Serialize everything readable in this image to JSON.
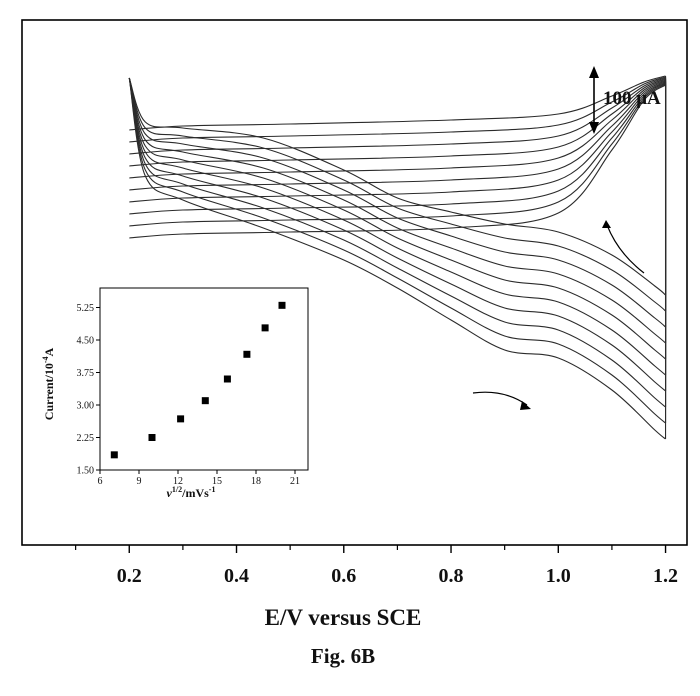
{
  "chart_data": [
    {
      "type": "line",
      "xlabel": "E/V versus SCE",
      "caption": "Fig. 6B",
      "xlim": [
        0.0,
        1.24
      ],
      "xticks": [
        0.2,
        0.4,
        0.6,
        0.8,
        1.0,
        1.2
      ],
      "xtick_labels": [
        "0.2",
        "0.4",
        "0.6",
        "0.8",
        "1.0",
        "1.2"
      ],
      "scale_bar": {
        "label": "100 μA",
        "value_uA": 100
      },
      "series_count": 10,
      "series": [
        {
          "anodic": [
            [
              0.2,
              110
            ],
            [
              0.3,
              106
            ],
            [
              0.5,
              104
            ],
            [
              0.8,
              100
            ],
            [
              1.0,
              94
            ],
            [
              1.1,
              76
            ],
            [
              1.16,
              62
            ],
            [
              1.2,
              56
            ]
          ],
          "cathodic": [
            [
              0.2,
              58
            ],
            [
              0.23,
              102
            ],
            [
              0.3,
              108
            ],
            [
              0.45,
              118
            ],
            [
              0.6,
              150
            ],
            [
              0.7,
              178
            ],
            [
              0.8,
              192
            ],
            [
              0.9,
              204
            ],
            [
              1.0,
              212
            ],
            [
              1.1,
              235
            ],
            [
              1.18,
              266
            ],
            [
              1.2,
              275
            ]
          ]
        },
        {
          "anodic": [
            [
              0.2,
              122
            ],
            [
              0.3,
              118
            ],
            [
              0.5,
              116
            ],
            [
              0.8,
              112
            ],
            [
              1.0,
              105
            ],
            [
              1.1,
              82
            ],
            [
              1.16,
              64
            ],
            [
              1.2,
              57
            ]
          ],
          "cathodic": [
            [
              0.2,
              58
            ],
            [
              0.23,
              108
            ],
            [
              0.3,
              116
            ],
            [
              0.45,
              128
            ],
            [
              0.6,
              160
            ],
            [
              0.7,
              188
            ],
            [
              0.8,
              204
            ],
            [
              0.9,
              218
            ],
            [
              1.0,
              226
            ],
            [
              1.1,
              250
            ],
            [
              1.18,
              282
            ],
            [
              1.2,
              291
            ]
          ]
        },
        {
          "anodic": [
            [
              0.2,
              134
            ],
            [
              0.3,
              130
            ],
            [
              0.5,
              128
            ],
            [
              0.8,
              124
            ],
            [
              1.0,
              116
            ],
            [
              1.1,
              88
            ],
            [
              1.16,
              66
            ],
            [
              1.2,
              58
            ]
          ],
          "cathodic": [
            [
              0.2,
              58
            ],
            [
              0.23,
              114
            ],
            [
              0.3,
              124
            ],
            [
              0.45,
              138
            ],
            [
              0.6,
              170
            ],
            [
              0.7,
              198
            ],
            [
              0.8,
              216
            ],
            [
              0.9,
              232
            ],
            [
              1.0,
              240
            ],
            [
              1.1,
              265
            ],
            [
              1.18,
              298
            ],
            [
              1.2,
              307
            ]
          ]
        },
        {
          "anodic": [
            [
              0.2,
              146
            ],
            [
              0.3,
              142
            ],
            [
              0.5,
              140
            ],
            [
              0.8,
              136
            ],
            [
              1.0,
              127
            ],
            [
              1.1,
              94
            ],
            [
              1.16,
              68
            ],
            [
              1.2,
              59
            ]
          ],
          "cathodic": [
            [
              0.2,
              58
            ],
            [
              0.23,
              120
            ],
            [
              0.3,
              132
            ],
            [
              0.45,
              148
            ],
            [
              0.6,
              180
            ],
            [
              0.7,
              208
            ],
            [
              0.8,
              228
            ],
            [
              0.9,
              246
            ],
            [
              1.0,
              254
            ],
            [
              1.1,
              280
            ],
            [
              1.18,
              314
            ],
            [
              1.2,
              323
            ]
          ]
        },
        {
          "anodic": [
            [
              0.2,
              158
            ],
            [
              0.3,
              154
            ],
            [
              0.5,
              152
            ],
            [
              0.8,
              148
            ],
            [
              1.0,
              138
            ],
            [
              1.1,
              100
            ],
            [
              1.16,
              70
            ],
            [
              1.2,
              60
            ]
          ],
          "cathodic": [
            [
              0.2,
              58
            ],
            [
              0.23,
              126
            ],
            [
              0.3,
              140
            ],
            [
              0.45,
              158
            ],
            [
              0.6,
              190
            ],
            [
              0.7,
              218
            ],
            [
              0.8,
              240
            ],
            [
              0.9,
              260
            ],
            [
              1.0,
              268
            ],
            [
              1.1,
              295
            ],
            [
              1.18,
              330
            ],
            [
              1.2,
              339
            ]
          ]
        },
        {
          "anodic": [
            [
              0.2,
              170
            ],
            [
              0.3,
              166
            ],
            [
              0.5,
              164
            ],
            [
              0.8,
              160
            ],
            [
              1.0,
              149
            ],
            [
              1.1,
              106
            ],
            [
              1.16,
              72
            ],
            [
              1.2,
              61
            ]
          ],
          "cathodic": [
            [
              0.2,
              58
            ],
            [
              0.23,
              132
            ],
            [
              0.3,
              148
            ],
            [
              0.45,
              168
            ],
            [
              0.6,
              200
            ],
            [
              0.7,
              228
            ],
            [
              0.8,
              252
            ],
            [
              0.9,
              274
            ],
            [
              1.0,
              282
            ],
            [
              1.1,
              310
            ],
            [
              1.18,
              346
            ],
            [
              1.2,
              355
            ]
          ]
        },
        {
          "anodic": [
            [
              0.2,
              182
            ],
            [
              0.3,
              178
            ],
            [
              0.5,
              176
            ],
            [
              0.8,
              172
            ],
            [
              1.0,
              160
            ],
            [
              1.1,
              112
            ],
            [
              1.16,
              74
            ],
            [
              1.2,
              62
            ]
          ],
          "cathodic": [
            [
              0.2,
              58
            ],
            [
              0.23,
              138
            ],
            [
              0.3,
              156
            ],
            [
              0.45,
              178
            ],
            [
              0.6,
              210
            ],
            [
              0.7,
              238
            ],
            [
              0.8,
              264
            ],
            [
              0.9,
              288
            ],
            [
              1.0,
              296
            ],
            [
              1.1,
              325
            ],
            [
              1.18,
              362
            ],
            [
              1.2,
              371
            ]
          ]
        },
        {
          "anodic": [
            [
              0.2,
              194
            ],
            [
              0.3,
              190
            ],
            [
              0.5,
              188
            ],
            [
              0.8,
              184
            ],
            [
              1.0,
              171
            ],
            [
              1.1,
              118
            ],
            [
              1.16,
              76
            ],
            [
              1.2,
              63
            ]
          ],
          "cathodic": [
            [
              0.2,
              58
            ],
            [
              0.23,
              144
            ],
            [
              0.3,
              164
            ],
            [
              0.45,
              188
            ],
            [
              0.6,
              220
            ],
            [
              0.7,
              248
            ],
            [
              0.8,
              276
            ],
            [
              0.9,
              302
            ],
            [
              1.0,
              310
            ],
            [
              1.1,
              340
            ],
            [
              1.18,
              378
            ],
            [
              1.2,
              387
            ]
          ]
        },
        {
          "anodic": [
            [
              0.2,
              206
            ],
            [
              0.3,
              202
            ],
            [
              0.5,
              200
            ],
            [
              0.8,
              196
            ],
            [
              1.0,
              182
            ],
            [
              1.1,
              124
            ],
            [
              1.16,
              78
            ],
            [
              1.2,
              64
            ]
          ],
          "cathodic": [
            [
              0.2,
              58
            ],
            [
              0.23,
              150
            ],
            [
              0.3,
              172
            ],
            [
              0.45,
              198
            ],
            [
              0.6,
              230
            ],
            [
              0.7,
              258
            ],
            [
              0.8,
              288
            ],
            [
              0.9,
              316
            ],
            [
              1.0,
              324
            ],
            [
              1.1,
              355
            ],
            [
              1.18,
              394
            ],
            [
              1.2,
              403
            ]
          ]
        },
        {
          "anodic": [
            [
              0.2,
              218
            ],
            [
              0.3,
              214
            ],
            [
              0.5,
              212
            ],
            [
              0.8,
              208
            ],
            [
              1.0,
              193
            ],
            [
              1.1,
              130
            ],
            [
              1.16,
              80
            ],
            [
              1.2,
              65
            ]
          ],
          "cathodic": [
            [
              0.2,
              58
            ],
            [
              0.23,
              156
            ],
            [
              0.3,
              180
            ],
            [
              0.45,
              208
            ],
            [
              0.6,
              240
            ],
            [
              0.7,
              268
            ],
            [
              0.8,
              300
            ],
            [
              0.9,
              330
            ],
            [
              1.0,
              338
            ],
            [
              1.1,
              370
            ],
            [
              1.18,
              410
            ],
            [
              1.2,
              419
            ]
          ]
        }
      ]
    },
    {
      "type": "scatter",
      "xlabel": "ν1/2/mVs-1",
      "ylabel": "Current/10-4A",
      "xlim": [
        6,
        22
      ],
      "ylim": [
        1.5,
        5.7
      ],
      "xticks": [
        6,
        9,
        12,
        15,
        18,
        21
      ],
      "yticks": [
        1.5,
        2.25,
        3.0,
        3.75,
        4.5,
        5.25
      ],
      "xtick_labels": [
        "6",
        "9",
        "12",
        "15",
        "18",
        "21"
      ],
      "ytick_labels": [
        "1.50",
        "2.25",
        "3.00",
        "3.75",
        "4.50",
        "5.25"
      ],
      "x": [
        7.1,
        10.0,
        12.2,
        14.1,
        15.8,
        17.3,
        18.7,
        20.0
      ],
      "y": [
        1.85,
        2.25,
        2.68,
        3.1,
        3.6,
        4.17,
        4.78,
        5.3
      ]
    }
  ],
  "arrow_color": "#000000",
  "line_color": "#2b2b2b"
}
